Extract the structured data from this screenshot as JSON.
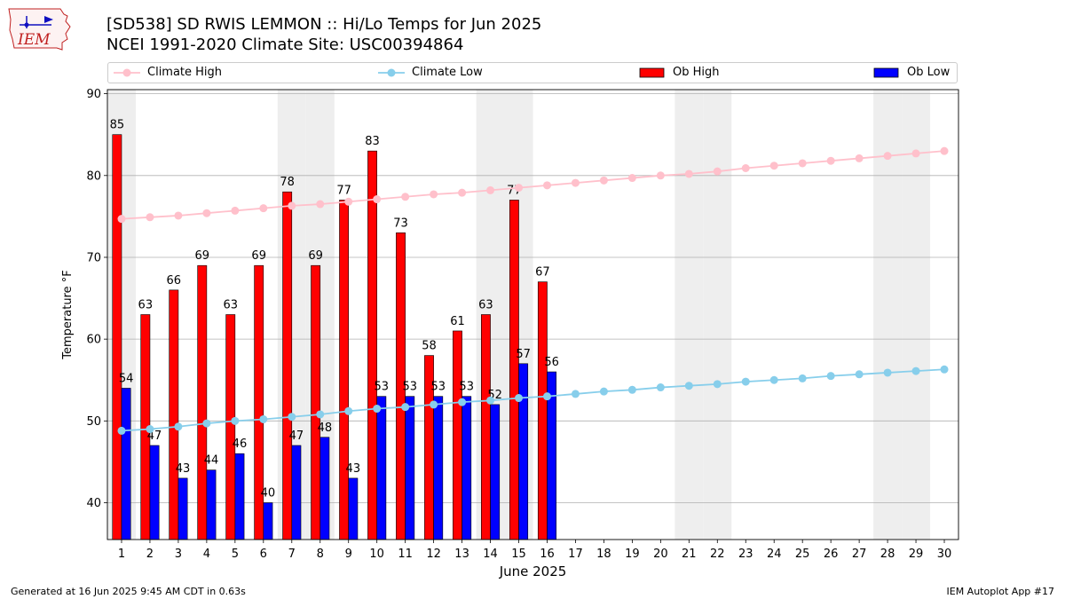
{
  "header": {
    "title_line1": "[SD538] SD RWIS LEMMON :: Hi/Lo Temps for Jun 2025",
    "title_line2": "NCEI 1991-2020 Climate Site: USC00394864",
    "logo_text": "IEM"
  },
  "legend": {
    "climate_high": "Climate High",
    "climate_low": "Climate Low",
    "ob_high": "Ob High",
    "ob_low": "Ob Low"
  },
  "footer": {
    "generated": "Generated at 16 Jun 2025 9:45 AM CDT in 0.63s",
    "app": "IEM Autoplot App #17"
  },
  "colors": {
    "ob_high": "#ff0000",
    "ob_low": "#0000ff",
    "climate_high": "#ffc0cb",
    "climate_low": "#87ceeb",
    "weekend_band": "#eeeeee",
    "grid": "#b0b0b0"
  },
  "chart_data": {
    "type": "bar",
    "xlabel": "June 2025",
    "ylabel": "Temperature °F",
    "ylim": [
      35.5,
      90.5
    ],
    "yticks": [
      40,
      50,
      60,
      70,
      80,
      90
    ],
    "grid": "horizontal",
    "legend_position": "top",
    "days": [
      1,
      2,
      3,
      4,
      5,
      6,
      7,
      8,
      9,
      10,
      11,
      12,
      13,
      14,
      15,
      16,
      17,
      18,
      19,
      20,
      21,
      22,
      23,
      24,
      25,
      26,
      27,
      28,
      29,
      30
    ],
    "weekend_days": [
      1,
      7,
      8,
      14,
      15,
      21,
      22,
      28,
      29
    ],
    "ob_high": [
      85,
      63,
      66,
      69,
      63,
      69,
      78,
      69,
      77,
      83,
      73,
      58,
      61,
      63,
      77,
      67
    ],
    "ob_low": [
      54,
      47,
      43,
      44,
      46,
      40,
      47,
      48,
      43,
      53,
      53,
      53,
      53,
      52,
      57,
      56
    ],
    "climate_high": [
      74.7,
      74.9,
      75.1,
      75.4,
      75.7,
      76.0,
      76.3,
      76.5,
      76.8,
      77.1,
      77.4,
      77.7,
      77.9,
      78.2,
      78.5,
      78.8,
      79.1,
      79.4,
      79.7,
      80.0,
      80.2,
      80.5,
      80.9,
      81.2,
      81.5,
      81.8,
      82.1,
      82.4,
      82.7,
      83.0
    ],
    "climate_low": [
      48.8,
      49.0,
      49.3,
      49.7,
      50.0,
      50.2,
      50.5,
      50.8,
      51.2,
      51.5,
      51.7,
      52.0,
      52.3,
      52.5,
      52.8,
      53.0,
      53.3,
      53.6,
      53.8,
      54.1,
      54.3,
      54.5,
      54.8,
      55.0,
      55.2,
      55.5,
      55.7,
      55.9,
      56.1,
      56.3
    ]
  }
}
